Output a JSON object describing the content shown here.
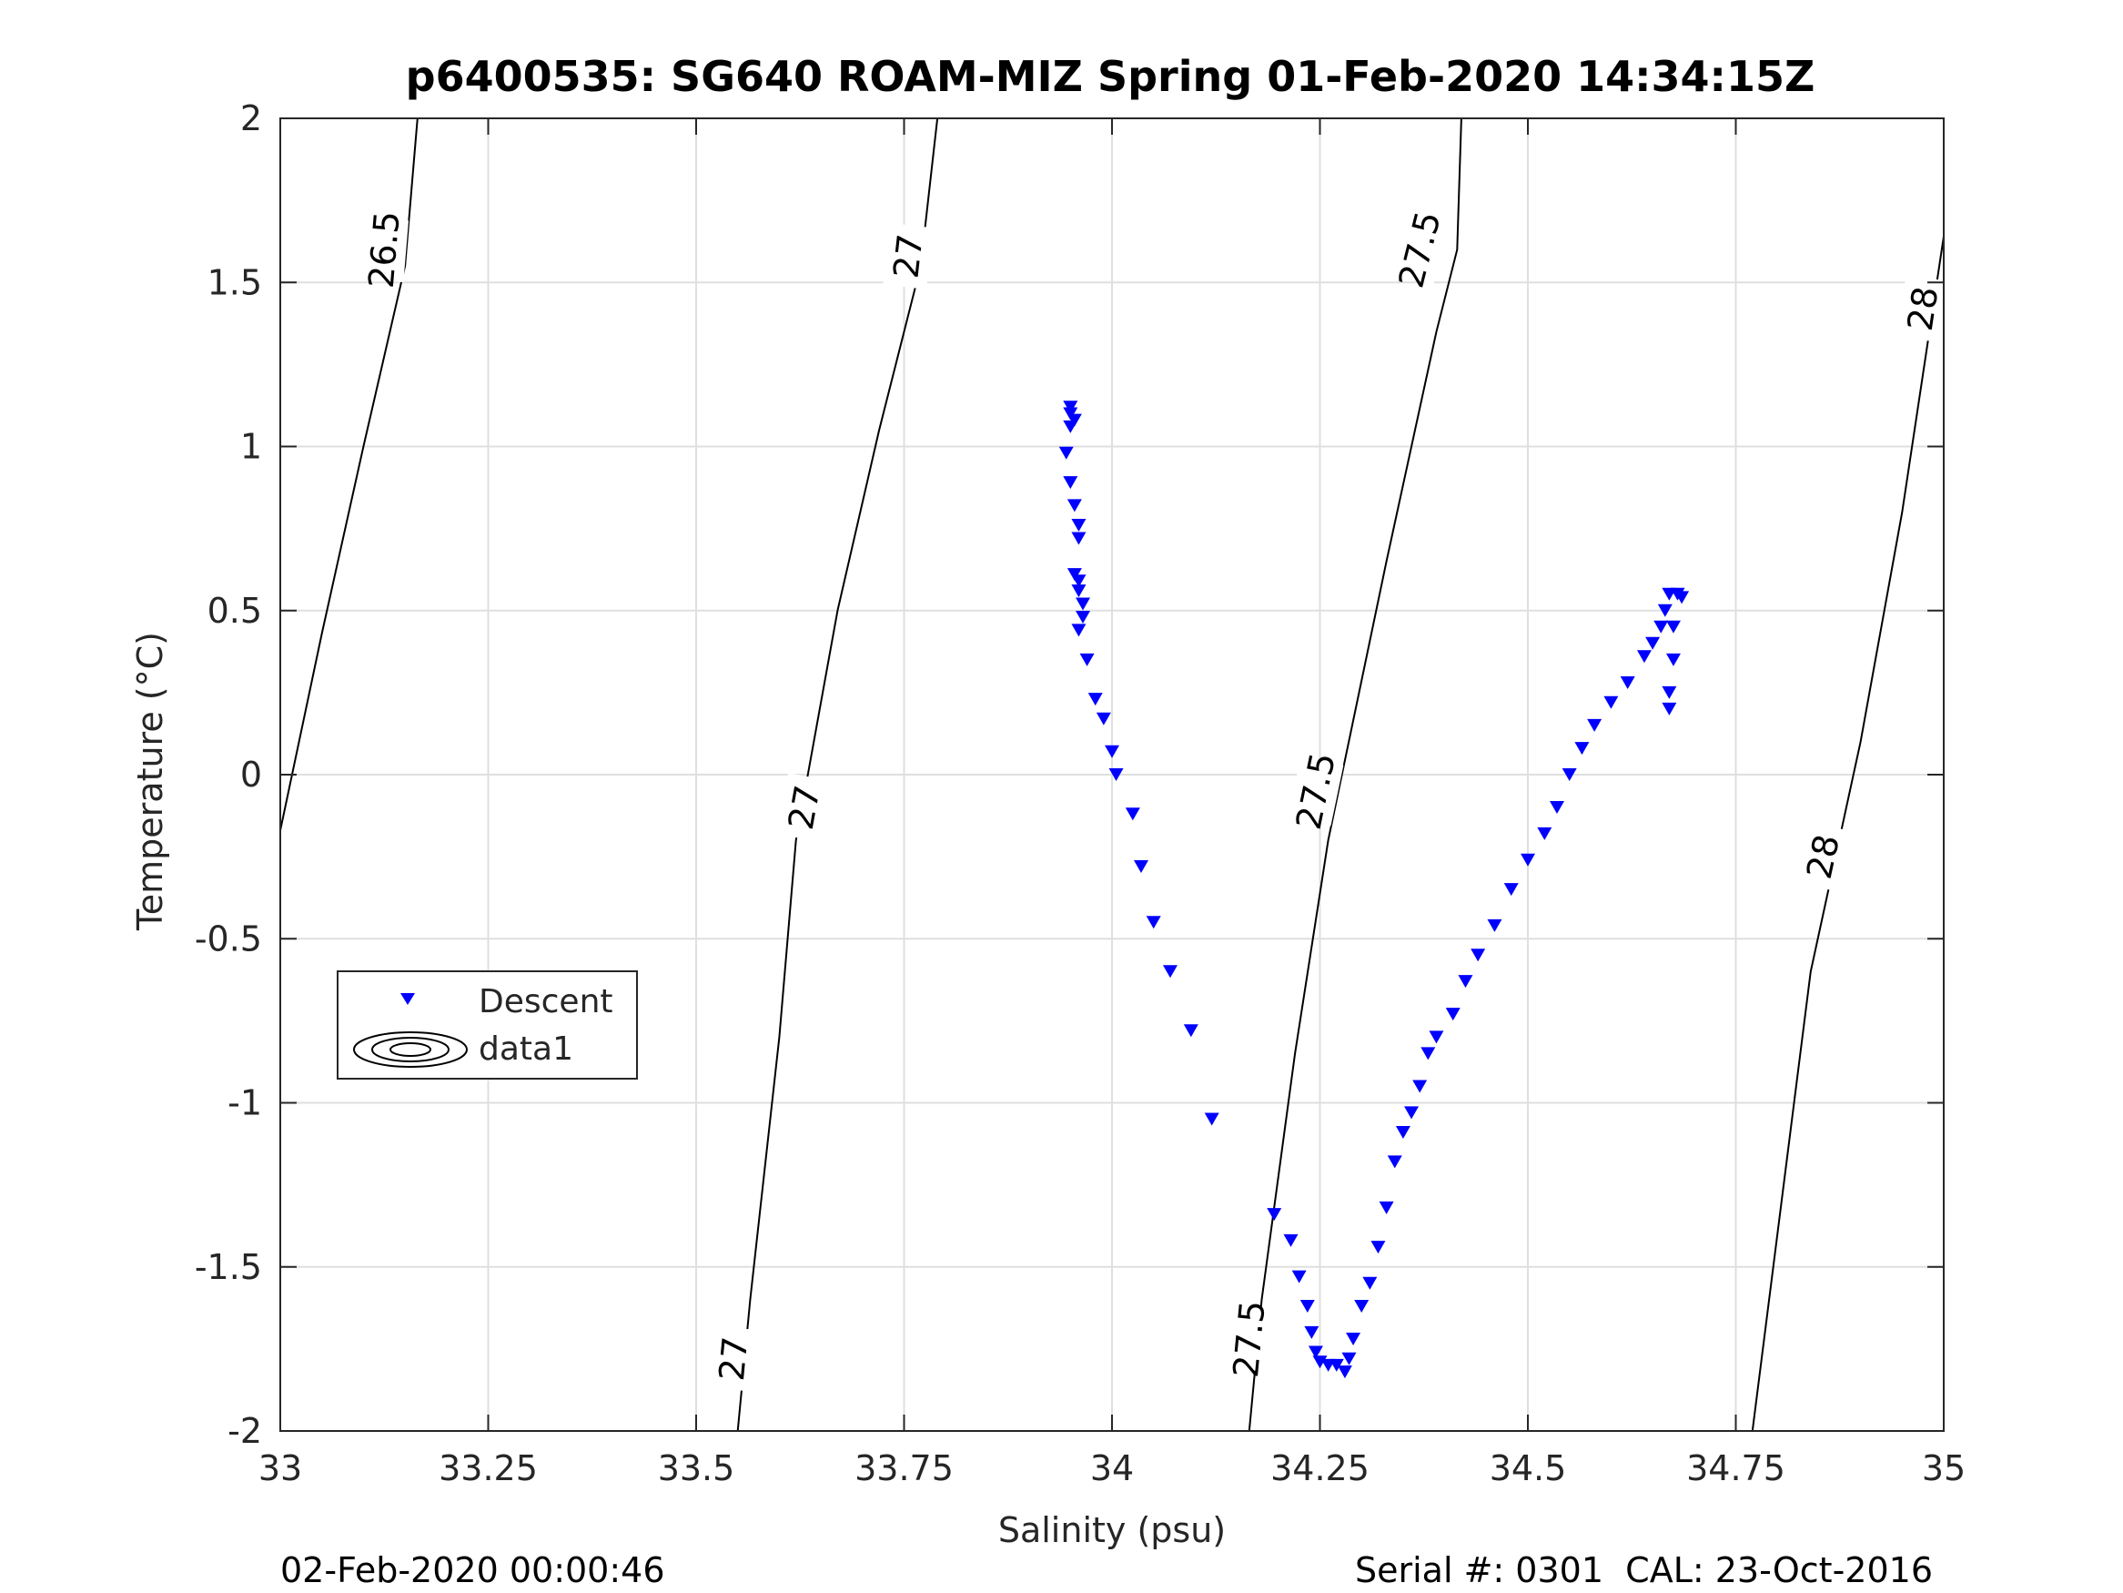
{
  "chart_data": {
    "type": "scatter",
    "title": "p6400535: SG640 ROAM-MIZ Spring 01-Feb-2020 14:34:15Z",
    "xlabel": "Salinity (psu)",
    "ylabel": "Temperature (°C)",
    "xlim": [
      33,
      35
    ],
    "ylim": [
      -2,
      2
    ],
    "x_ticks": [
      33,
      33.25,
      33.5,
      33.75,
      34,
      34.25,
      34.5,
      34.75,
      35
    ],
    "x_tick_labels": [
      "33",
      "33.25",
      "33.5",
      "33.75",
      "34",
      "34.25",
      "34.5",
      "34.75",
      "35"
    ],
    "y_ticks": [
      -2,
      -1.5,
      -1,
      -0.5,
      0,
      0.5,
      1,
      1.5,
      2
    ],
    "y_tick_labels": [
      "-2",
      "-1.5",
      "-1",
      "-0.5",
      "0",
      "0.5",
      "1",
      "1.5",
      "2"
    ],
    "grid": true,
    "legend_placement": "middle-left",
    "legend": [
      {
        "name": "Descent",
        "marker": "triangle-down",
        "color": "#0000ff"
      },
      {
        "name": "data1",
        "marker": "contour",
        "color": "#000000"
      }
    ],
    "series": [
      {
        "name": "Descent",
        "color": "#0000ff",
        "marker": "triangle-down",
        "points": [
          [
            33.95,
            1.12
          ],
          [
            33.95,
            1.1
          ],
          [
            33.955,
            1.08
          ],
          [
            33.95,
            1.06
          ],
          [
            33.945,
            0.98
          ],
          [
            33.95,
            0.89
          ],
          [
            33.955,
            0.82
          ],
          [
            33.96,
            0.76
          ],
          [
            33.96,
            0.72
          ],
          [
            33.955,
            0.61
          ],
          [
            33.96,
            0.59
          ],
          [
            33.96,
            0.56
          ],
          [
            33.965,
            0.52
          ],
          [
            33.965,
            0.48
          ],
          [
            33.96,
            0.44
          ],
          [
            33.97,
            0.35
          ],
          [
            33.98,
            0.23
          ],
          [
            33.99,
            0.17
          ],
          [
            34.0,
            0.07
          ],
          [
            34.005,
            0.0
          ],
          [
            34.025,
            -0.12
          ],
          [
            34.035,
            -0.28
          ],
          [
            34.05,
            -0.45
          ],
          [
            34.07,
            -0.6
          ],
          [
            34.095,
            -0.78
          ],
          [
            34.12,
            -1.05
          ],
          [
            34.195,
            -1.34
          ],
          [
            34.215,
            -1.42
          ],
          [
            34.225,
            -1.53
          ],
          [
            34.235,
            -1.62
          ],
          [
            34.24,
            -1.7
          ],
          [
            34.245,
            -1.76
          ],
          [
            34.25,
            -1.79
          ],
          [
            34.26,
            -1.8
          ],
          [
            34.27,
            -1.8
          ],
          [
            34.28,
            -1.82
          ],
          [
            34.285,
            -1.78
          ],
          [
            34.29,
            -1.72
          ],
          [
            34.3,
            -1.62
          ],
          [
            34.31,
            -1.55
          ],
          [
            34.32,
            -1.44
          ],
          [
            34.33,
            -1.32
          ],
          [
            34.34,
            -1.18
          ],
          [
            34.35,
            -1.09
          ],
          [
            34.36,
            -1.03
          ],
          [
            34.37,
            -0.95
          ],
          [
            34.38,
            -0.85
          ],
          [
            34.39,
            -0.8
          ],
          [
            34.41,
            -0.73
          ],
          [
            34.425,
            -0.63
          ],
          [
            34.44,
            -0.55
          ],
          [
            34.46,
            -0.46
          ],
          [
            34.48,
            -0.35
          ],
          [
            34.5,
            -0.26
          ],
          [
            34.52,
            -0.18
          ],
          [
            34.535,
            -0.1
          ],
          [
            34.55,
            0.0
          ],
          [
            34.565,
            0.08
          ],
          [
            34.58,
            0.15
          ],
          [
            34.6,
            0.22
          ],
          [
            34.62,
            0.28
          ],
          [
            34.64,
            0.36
          ],
          [
            34.65,
            0.4
          ],
          [
            34.66,
            0.45
          ],
          [
            34.665,
            0.5
          ],
          [
            34.67,
            0.55
          ],
          [
            34.68,
            0.55
          ],
          [
            34.685,
            0.54
          ],
          [
            34.675,
            0.45
          ],
          [
            34.675,
            0.35
          ],
          [
            34.67,
            0.25
          ],
          [
            34.67,
            0.2
          ]
        ]
      }
    ],
    "density_contours": [
      {
        "label": "26.5",
        "points": [
          [
            33.0,
            -0.17
          ],
          [
            33.05,
            0.43
          ],
          [
            33.1,
            1.0
          ],
          [
            33.15,
            1.55
          ],
          [
            33.165,
            2.0
          ]
        ],
        "label_positions": [
          [
            33.125,
            1.6
          ]
        ]
      },
      {
        "label": "27",
        "points": [
          [
            33.55,
            -2.0
          ],
          [
            33.565,
            -1.6
          ],
          [
            33.6,
            -0.8
          ],
          [
            33.62,
            -0.2
          ],
          [
            33.67,
            0.5
          ],
          [
            33.72,
            1.05
          ],
          [
            33.77,
            1.55
          ],
          [
            33.79,
            2.0
          ]
        ],
        "label_positions": [
          [
            33.545,
            -1.78
          ],
          [
            33.63,
            -0.1
          ],
          [
            33.755,
            1.58
          ]
        ]
      },
      {
        "label": "27.5",
        "points": [
          [
            34.165,
            -2.0
          ],
          [
            34.18,
            -1.6
          ],
          [
            34.22,
            -0.85
          ],
          [
            34.26,
            -0.2
          ],
          [
            34.33,
            0.65
          ],
          [
            34.39,
            1.35
          ],
          [
            34.415,
            1.6
          ],
          [
            34.42,
            2.0
          ]
        ],
        "label_positions": [
          [
            34.165,
            -1.72
          ],
          [
            34.245,
            -0.05
          ],
          [
            34.37,
            1.6
          ]
        ]
      },
      {
        "label": "28",
        "points": [
          [
            34.77,
            -2.0
          ],
          [
            34.79,
            -1.6
          ],
          [
            34.84,
            -0.6
          ],
          [
            34.9,
            0.1
          ],
          [
            34.95,
            0.8
          ],
          [
            35.0,
            1.64
          ]
        ],
        "label_positions": [
          [
            34.855,
            -0.25
          ],
          [
            34.975,
            1.42
          ]
        ]
      }
    ],
    "footer_left": "02-Feb-2020 00:00:46",
    "footer_right": "Serial #: 0301  CAL: 23-Oct-2016"
  }
}
